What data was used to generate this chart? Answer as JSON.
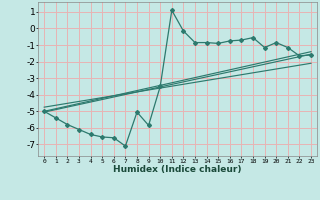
{
  "xlabel": "Humidex (Indice chaleur)",
  "xlim": [
    -0.5,
    23.5
  ],
  "ylim": [
    -7.7,
    1.6
  ],
  "xticks": [
    0,
    1,
    2,
    3,
    4,
    5,
    6,
    7,
    8,
    9,
    10,
    11,
    12,
    13,
    14,
    15,
    16,
    17,
    18,
    19,
    20,
    21,
    22,
    23
  ],
  "yticks": [
    1,
    0,
    -1,
    -2,
    -3,
    -4,
    -5,
    -6,
    -7
  ],
  "bg_color": "#c5e8e5",
  "grid_color": "#e8b4b4",
  "line_color": "#2d7a6e",
  "data_x": [
    0,
    1,
    2,
    3,
    4,
    5,
    6,
    7,
    8,
    9,
    10,
    11,
    12,
    13,
    14,
    15,
    16,
    17,
    18,
    19,
    20,
    21,
    22,
    23
  ],
  "data_y": [
    -5.0,
    -5.4,
    -5.8,
    -6.1,
    -6.4,
    -6.55,
    -6.6,
    -7.1,
    -5.05,
    -5.85,
    -3.5,
    1.1,
    -0.15,
    -0.85,
    -0.85,
    -0.9,
    -0.75,
    -0.7,
    -0.55,
    -1.15,
    -0.85,
    -1.15,
    -1.65,
    -1.6
  ],
  "trend_lines": [
    {
      "x": [
        0,
        23
      ],
      "y": [
        -5.0,
        -1.4
      ]
    },
    {
      "x": [
        0,
        23
      ],
      "y": [
        -5.05,
        -1.55
      ]
    },
    {
      "x": [
        0,
        23
      ],
      "y": [
        -4.75,
        -2.1
      ]
    }
  ]
}
